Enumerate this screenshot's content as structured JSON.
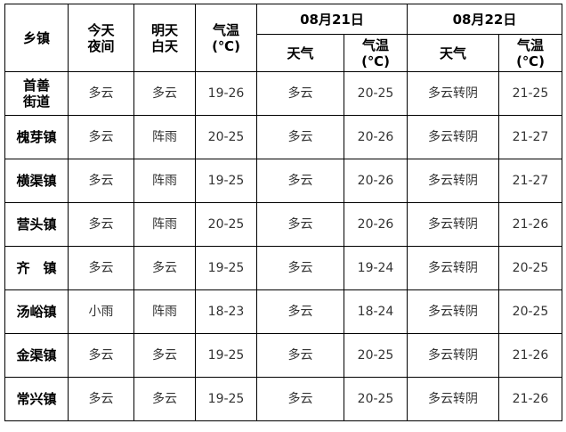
{
  "header": {
    "town": "乡镇",
    "tonight": [
      "今天",
      "夜间"
    ],
    "tomorrow": [
      "明天",
      "白天"
    ],
    "temp": [
      "气温",
      "(℃)"
    ],
    "day1": {
      "date": "08月21日",
      "weather": "天气",
      "temp": [
        "气温",
        "(℃)"
      ]
    },
    "day2": {
      "date": "08月22日",
      "weather": "天气",
      "temp": [
        "气温",
        "(℃)"
      ]
    }
  },
  "rows": [
    {
      "town": [
        "首善",
        "街道"
      ],
      "tonight": "多云",
      "tomorrow": "多云",
      "temp": "19-26",
      "d1_weather": "多云",
      "d1_temp": "20-25",
      "d2_weather": "多云转阴",
      "d2_temp": "21-25"
    },
    {
      "town": [
        "槐芽镇"
      ],
      "tonight": "多云",
      "tomorrow": "阵雨",
      "temp": "20-25",
      "d1_weather": "多云",
      "d1_temp": "20-26",
      "d2_weather": "多云转阴",
      "d2_temp": "21-27"
    },
    {
      "town": [
        "横渠镇"
      ],
      "tonight": "多云",
      "tomorrow": "阵雨",
      "temp": "19-25",
      "d1_weather": "多云",
      "d1_temp": "20-26",
      "d2_weather": "多云转阴",
      "d2_temp": "21-27"
    },
    {
      "town": [
        "营头镇"
      ],
      "tonight": "多云",
      "tomorrow": "阵雨",
      "temp": "20-25",
      "d1_weather": "多云",
      "d1_temp": "20-26",
      "d2_weather": "多云转阴",
      "d2_temp": "21-26"
    },
    {
      "town": [
        "齐　镇"
      ],
      "tonight": "多云",
      "tomorrow": "多云",
      "temp": "19-25",
      "d1_weather": "多云",
      "d1_temp": "19-24",
      "d2_weather": "多云转阴",
      "d2_temp": "20-25"
    },
    {
      "town": [
        "汤峪镇"
      ],
      "tonight": "小雨",
      "tomorrow": "阵雨",
      "temp": "18-23",
      "d1_weather": "多云",
      "d1_temp": "18-24",
      "d2_weather": "多云转阴",
      "d2_temp": "20-25"
    },
    {
      "town": [
        "金渠镇"
      ],
      "tonight": "多云",
      "tomorrow": "多云",
      "temp": "19-25",
      "d1_weather": "多云",
      "d1_temp": "20-25",
      "d2_weather": "多云转阴",
      "d2_temp": "21-26"
    },
    {
      "town": [
        "常兴镇"
      ],
      "tonight": "多云",
      "tomorrow": "多云",
      "temp": "19-25",
      "d1_weather": "多云",
      "d1_temp": "20-25",
      "d2_weather": "多云转阴",
      "d2_temp": "21-26"
    }
  ]
}
